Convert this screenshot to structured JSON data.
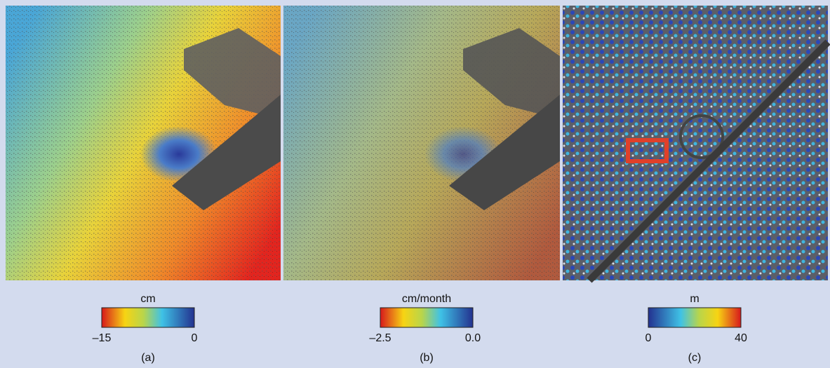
{
  "panels": [
    {
      "unit": "cm",
      "min": "–15",
      "max": "0",
      "caption": "(a)",
      "scale": "reverse-jet"
    },
    {
      "unit": "cm/month",
      "min": "–2.5",
      "max": "0.0",
      "caption": "(b)",
      "scale": "reverse-jet"
    },
    {
      "unit": "m",
      "min": "0",
      "max": "40",
      "caption": "(c)",
      "scale": "jet"
    }
  ]
}
